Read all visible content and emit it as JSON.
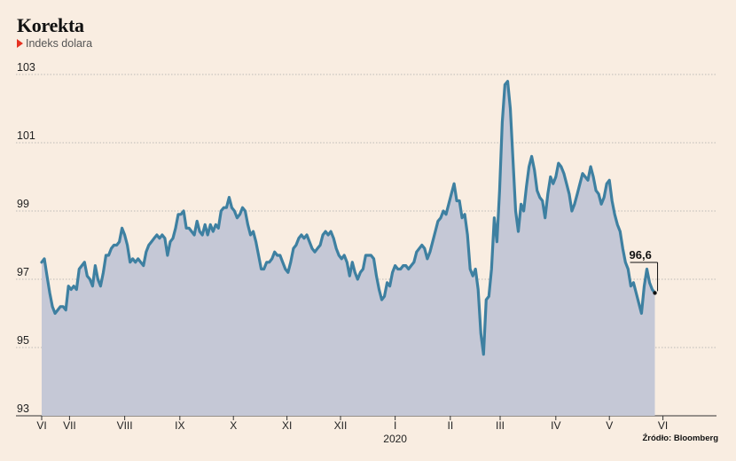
{
  "title": "Korekta",
  "subtitle": "Indeks dolara",
  "source": "Źródło: Bloomberg",
  "colors": {
    "background": "#f9ede1",
    "line": "#3e80a1",
    "area": "#c5c8d6",
    "grid": "#a9a9a9",
    "marker": "#e63222"
  },
  "chart_data": {
    "type": "area",
    "title": "Korekta",
    "subtitle": "Indeks dolara",
    "ylim": [
      93,
      103
    ],
    "yticks": [
      93,
      95,
      97,
      99,
      101,
      103
    ],
    "xlim": [
      0,
      12.6
    ],
    "xticks": [
      {
        "pos": 0.0,
        "label": "VI"
      },
      {
        "pos": 0.52,
        "label": "VII"
      },
      {
        "pos": 1.55,
        "label": "VIII"
      },
      {
        "pos": 2.58,
        "label": "IX"
      },
      {
        "pos": 3.58,
        "label": "X"
      },
      {
        "pos": 4.58,
        "label": "XI"
      },
      {
        "pos": 5.58,
        "label": "XII"
      },
      {
        "pos": 6.6,
        "label": "I"
      },
      {
        "pos": 7.63,
        "label": "II"
      },
      {
        "pos": 8.56,
        "label": "III"
      },
      {
        "pos": 9.6,
        "label": "IV"
      },
      {
        "pos": 10.6,
        "label": "V"
      },
      {
        "pos": 11.6,
        "label": "VI"
      }
    ],
    "year_label": {
      "pos": 6.6,
      "label": "2020"
    },
    "last_value_label": "96,6",
    "grid": true,
    "series": [
      {
        "values": [
          [
            0.0,
            97.5
          ],
          [
            0.05,
            97.6
          ],
          [
            0.1,
            97.1
          ],
          [
            0.15,
            96.6
          ],
          [
            0.2,
            96.2
          ],
          [
            0.25,
            96.0
          ],
          [
            0.3,
            96.1
          ],
          [
            0.35,
            96.2
          ],
          [
            0.4,
            96.2
          ],
          [
            0.45,
            96.1
          ],
          [
            0.5,
            96.8
          ],
          [
            0.55,
            96.7
          ],
          [
            0.6,
            96.8
          ],
          [
            0.65,
            96.7
          ],
          [
            0.7,
            97.3
          ],
          [
            0.75,
            97.4
          ],
          [
            0.8,
            97.5
          ],
          [
            0.85,
            97.1
          ],
          [
            0.9,
            97.0
          ],
          [
            0.95,
            96.8
          ],
          [
            1.0,
            97.4
          ],
          [
            1.05,
            97.0
          ],
          [
            1.1,
            96.8
          ],
          [
            1.15,
            97.2
          ],
          [
            1.2,
            97.7
          ],
          [
            1.25,
            97.7
          ],
          [
            1.3,
            97.9
          ],
          [
            1.35,
            98.0
          ],
          [
            1.4,
            98.0
          ],
          [
            1.45,
            98.1
          ],
          [
            1.5,
            98.5
          ],
          [
            1.55,
            98.3
          ],
          [
            1.6,
            98.0
          ],
          [
            1.65,
            97.5
          ],
          [
            1.7,
            97.6
          ],
          [
            1.75,
            97.5
          ],
          [
            1.8,
            97.6
          ],
          [
            1.85,
            97.5
          ],
          [
            1.9,
            97.4
          ],
          [
            1.95,
            97.8
          ],
          [
            2.0,
            98.0
          ],
          [
            2.05,
            98.1
          ],
          [
            2.1,
            98.2
          ],
          [
            2.15,
            98.3
          ],
          [
            2.2,
            98.2
          ],
          [
            2.25,
            98.3
          ],
          [
            2.3,
            98.2
          ],
          [
            2.35,
            97.7
          ],
          [
            2.4,
            98.1
          ],
          [
            2.45,
            98.2
          ],
          [
            2.5,
            98.5
          ],
          [
            2.55,
            98.9
          ],
          [
            2.6,
            98.9
          ],
          [
            2.65,
            99.0
          ],
          [
            2.7,
            98.5
          ],
          [
            2.75,
            98.5
          ],
          [
            2.8,
            98.4
          ],
          [
            2.85,
            98.3
          ],
          [
            2.9,
            98.7
          ],
          [
            2.95,
            98.4
          ],
          [
            3.0,
            98.3
          ],
          [
            3.05,
            98.6
          ],
          [
            3.1,
            98.3
          ],
          [
            3.15,
            98.6
          ],
          [
            3.2,
            98.4
          ],
          [
            3.25,
            98.6
          ],
          [
            3.3,
            98.5
          ],
          [
            3.35,
            99.0
          ],
          [
            3.4,
            99.1
          ],
          [
            3.45,
            99.1
          ],
          [
            3.5,
            99.4
          ],
          [
            3.55,
            99.1
          ],
          [
            3.6,
            99.0
          ],
          [
            3.65,
            98.8
          ],
          [
            3.7,
            98.9
          ],
          [
            3.75,
            99.1
          ],
          [
            3.8,
            99.0
          ],
          [
            3.85,
            98.6
          ],
          [
            3.9,
            98.3
          ],
          [
            3.95,
            98.4
          ],
          [
            4.0,
            98.1
          ],
          [
            4.05,
            97.7
          ],
          [
            4.1,
            97.3
          ],
          [
            4.15,
            97.3
          ],
          [
            4.2,
            97.5
          ],
          [
            4.25,
            97.5
          ],
          [
            4.3,
            97.6
          ],
          [
            4.35,
            97.8
          ],
          [
            4.4,
            97.7
          ],
          [
            4.45,
            97.7
          ],
          [
            4.5,
            97.5
          ],
          [
            4.55,
            97.3
          ],
          [
            4.6,
            97.2
          ],
          [
            4.65,
            97.5
          ],
          [
            4.7,
            97.9
          ],
          [
            4.75,
            98.0
          ],
          [
            4.8,
            98.2
          ],
          [
            4.85,
            98.3
          ],
          [
            4.9,
            98.2
          ],
          [
            4.95,
            98.3
          ],
          [
            5.0,
            98.1
          ],
          [
            5.05,
            97.9
          ],
          [
            5.1,
            97.8
          ],
          [
            5.15,
            97.9
          ],
          [
            5.2,
            98.0
          ],
          [
            5.25,
            98.3
          ],
          [
            5.3,
            98.4
          ],
          [
            5.35,
            98.3
          ],
          [
            5.4,
            98.4
          ],
          [
            5.45,
            98.2
          ],
          [
            5.5,
            97.9
          ],
          [
            5.55,
            97.7
          ],
          [
            5.6,
            97.6
          ],
          [
            5.65,
            97.7
          ],
          [
            5.7,
            97.5
          ],
          [
            5.75,
            97.1
          ],
          [
            5.8,
            97.5
          ],
          [
            5.85,
            97.2
          ],
          [
            5.9,
            97.0
          ],
          [
            5.95,
            97.2
          ],
          [
            6.0,
            97.3
          ],
          [
            6.05,
            97.7
          ],
          [
            6.1,
            97.7
          ],
          [
            6.15,
            97.7
          ],
          [
            6.2,
            97.6
          ],
          [
            6.25,
            97.1
          ],
          [
            6.3,
            96.7
          ],
          [
            6.35,
            96.4
          ],
          [
            6.4,
            96.5
          ],
          [
            6.45,
            96.9
          ],
          [
            6.5,
            96.8
          ],
          [
            6.55,
            97.2
          ],
          [
            6.6,
            97.4
          ],
          [
            6.65,
            97.3
          ],
          [
            6.7,
            97.3
          ],
          [
            6.75,
            97.4
          ],
          [
            6.8,
            97.4
          ],
          [
            6.85,
            97.3
          ],
          [
            6.9,
            97.4
          ],
          [
            6.95,
            97.5
          ],
          [
            7.0,
            97.8
          ],
          [
            7.05,
            97.9
          ],
          [
            7.1,
            98.0
          ],
          [
            7.15,
            97.9
          ],
          [
            7.2,
            97.6
          ],
          [
            7.25,
            97.8
          ],
          [
            7.3,
            98.1
          ],
          [
            7.35,
            98.4
          ],
          [
            7.4,
            98.7
          ],
          [
            7.45,
            98.8
          ],
          [
            7.5,
            99.0
          ],
          [
            7.55,
            98.9
          ],
          [
            7.6,
            99.2
          ],
          [
            7.65,
            99.5
          ],
          [
            7.7,
            99.8
          ],
          [
            7.75,
            99.3
          ],
          [
            7.8,
            99.3
          ],
          [
            7.85,
            98.8
          ],
          [
            7.9,
            98.9
          ],
          [
            7.95,
            98.3
          ],
          [
            8.0,
            97.3
          ],
          [
            8.05,
            97.1
          ],
          [
            8.1,
            97.3
          ],
          [
            8.15,
            96.7
          ],
          [
            8.2,
            95.4
          ],
          [
            8.25,
            94.8
          ],
          [
            8.3,
            96.4
          ],
          [
            8.35,
            96.5
          ],
          [
            8.4,
            97.3
          ],
          [
            8.45,
            98.8
          ],
          [
            8.5,
            98.1
          ],
          [
            8.55,
            99.6
          ],
          [
            8.6,
            101.6
          ],
          [
            8.65,
            102.7
          ],
          [
            8.7,
            102.8
          ],
          [
            8.75,
            102.0
          ],
          [
            8.8,
            100.5
          ],
          [
            8.85,
            99.0
          ],
          [
            8.9,
            98.4
          ],
          [
            8.95,
            99.2
          ],
          [
            9.0,
            99.0
          ],
          [
            9.05,
            99.7
          ],
          [
            9.1,
            100.3
          ],
          [
            9.15,
            100.6
          ],
          [
            9.2,
            100.2
          ],
          [
            9.25,
            99.6
          ],
          [
            9.3,
            99.4
          ],
          [
            9.35,
            99.3
          ],
          [
            9.4,
            98.8
          ],
          [
            9.45,
            99.5
          ],
          [
            9.5,
            100.0
          ],
          [
            9.55,
            99.8
          ],
          [
            9.6,
            100.0
          ],
          [
            9.65,
            100.4
          ],
          [
            9.7,
            100.3
          ],
          [
            9.75,
            100.1
          ],
          [
            9.8,
            99.8
          ],
          [
            9.85,
            99.5
          ],
          [
            9.9,
            99.0
          ],
          [
            9.95,
            99.2
          ],
          [
            10.0,
            99.5
          ],
          [
            10.05,
            99.8
          ],
          [
            10.1,
            100.1
          ],
          [
            10.15,
            100.0
          ],
          [
            10.2,
            99.9
          ],
          [
            10.25,
            100.3
          ],
          [
            10.3,
            100.0
          ],
          [
            10.35,
            99.6
          ],
          [
            10.4,
            99.5
          ],
          [
            10.45,
            99.2
          ],
          [
            10.5,
            99.4
          ],
          [
            10.55,
            99.8
          ],
          [
            10.6,
            99.9
          ],
          [
            10.65,
            99.3
          ],
          [
            10.7,
            98.9
          ],
          [
            10.75,
            98.6
          ],
          [
            10.8,
            98.4
          ],
          [
            10.85,
            97.9
          ],
          [
            10.9,
            97.5
          ],
          [
            10.95,
            97.3
          ],
          [
            11.0,
            96.8
          ],
          [
            11.05,
            96.9
          ],
          [
            11.1,
            96.6
          ],
          [
            11.15,
            96.3
          ],
          [
            11.2,
            96.0
          ],
          [
            11.25,
            96.8
          ],
          [
            11.3,
            97.3
          ],
          [
            11.35,
            96.9
          ],
          [
            11.4,
            96.7
          ],
          [
            11.45,
            96.6
          ]
        ]
      }
    ]
  }
}
